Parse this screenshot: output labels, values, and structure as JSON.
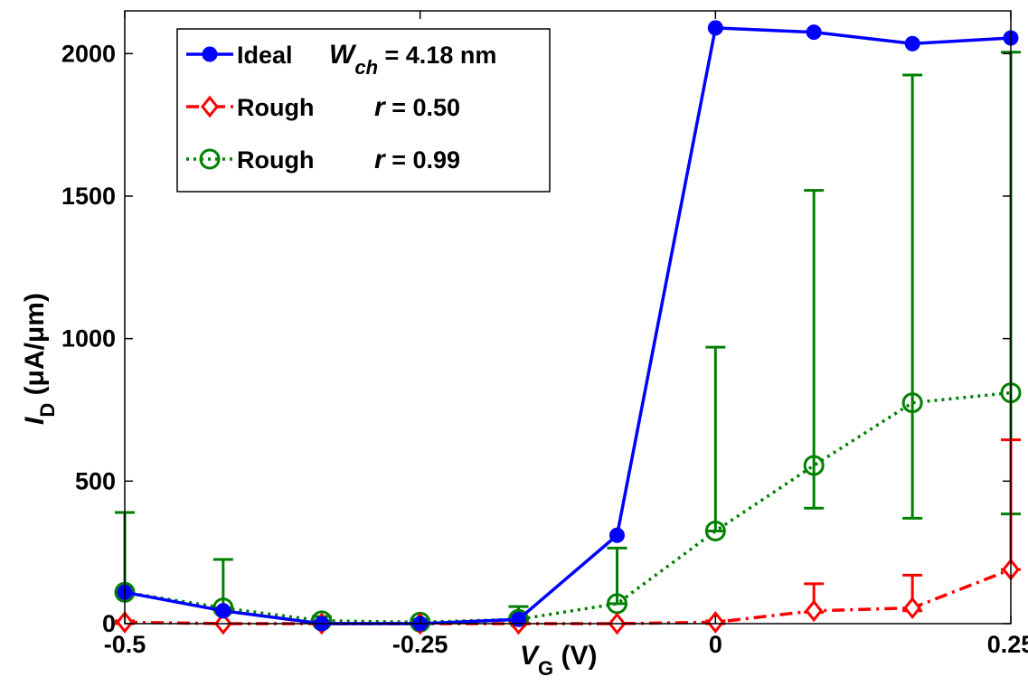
{
  "chart_data": {
    "type": "line",
    "xlabel": {
      "main": "V",
      "sub": "G",
      "unit": "(V)"
    },
    "ylabel": {
      "main": "I",
      "sub": "D",
      "unit": "(μA/μm)"
    },
    "xlim": [
      -0.5,
      0.25
    ],
    "ylim": [
      0,
      2150
    ],
    "xticks": [
      -0.5,
      -0.25,
      0,
      0.25
    ],
    "xtick_labels": [
      "-0.5",
      "-0.25",
      "0",
      "0.25"
    ],
    "yticks": [
      0,
      500,
      1000,
      1500,
      2000
    ],
    "ytick_labels": [
      "0",
      "500",
      "1000",
      "1500",
      "2000"
    ],
    "grid": false,
    "legend_position": "top-left",
    "x": [
      -0.5,
      -0.4167,
      -0.3333,
      -0.25,
      -0.1667,
      -0.0833,
      0,
      0.0833,
      0.1667,
      0.25
    ],
    "series": [
      {
        "name": "Ideal",
        "legend": {
          "label": "Ideal",
          "var": "W",
          "var_sub": "ch",
          "value": "= 4.18 nm"
        },
        "color": "#0000ff",
        "style": "solid",
        "marker": "filled-circle",
        "values": [
          110,
          45,
          0,
          0,
          15,
          310,
          2090,
          2075,
          2035,
          2055
        ]
      },
      {
        "name": "Rough",
        "legend": {
          "label": "Rough",
          "var": "r",
          "var_sub": "",
          "value": "= 0.50"
        },
        "color": "#ff0000",
        "style": "dashdot",
        "marker": "open-diamond",
        "values": [
          5,
          0,
          0,
          0,
          0,
          0,
          5,
          45,
          55,
          190
        ],
        "error_low": [
          5,
          0,
          0,
          0,
          0,
          0,
          5,
          5,
          10,
          0
        ],
        "error_high": [
          5,
          0,
          0,
          0,
          0,
          0,
          5,
          95,
          115,
          455
        ]
      },
      {
        "name": "Rough",
        "legend": {
          "label": "Rough",
          "var": "r",
          "var_sub": "",
          "value": "= 0.99"
        },
        "color": "#008000",
        "style": "dotted",
        "marker": "open-circle",
        "values": [
          110,
          55,
          10,
          5,
          15,
          70,
          325,
          555,
          775,
          810
        ],
        "error_low": [
          0,
          0,
          0,
          0,
          0,
          0,
          0,
          150,
          405,
          425
        ],
        "error_high": [
          280,
          170,
          15,
          10,
          45,
          195,
          645,
          965,
          1150,
          1195
        ]
      }
    ]
  }
}
